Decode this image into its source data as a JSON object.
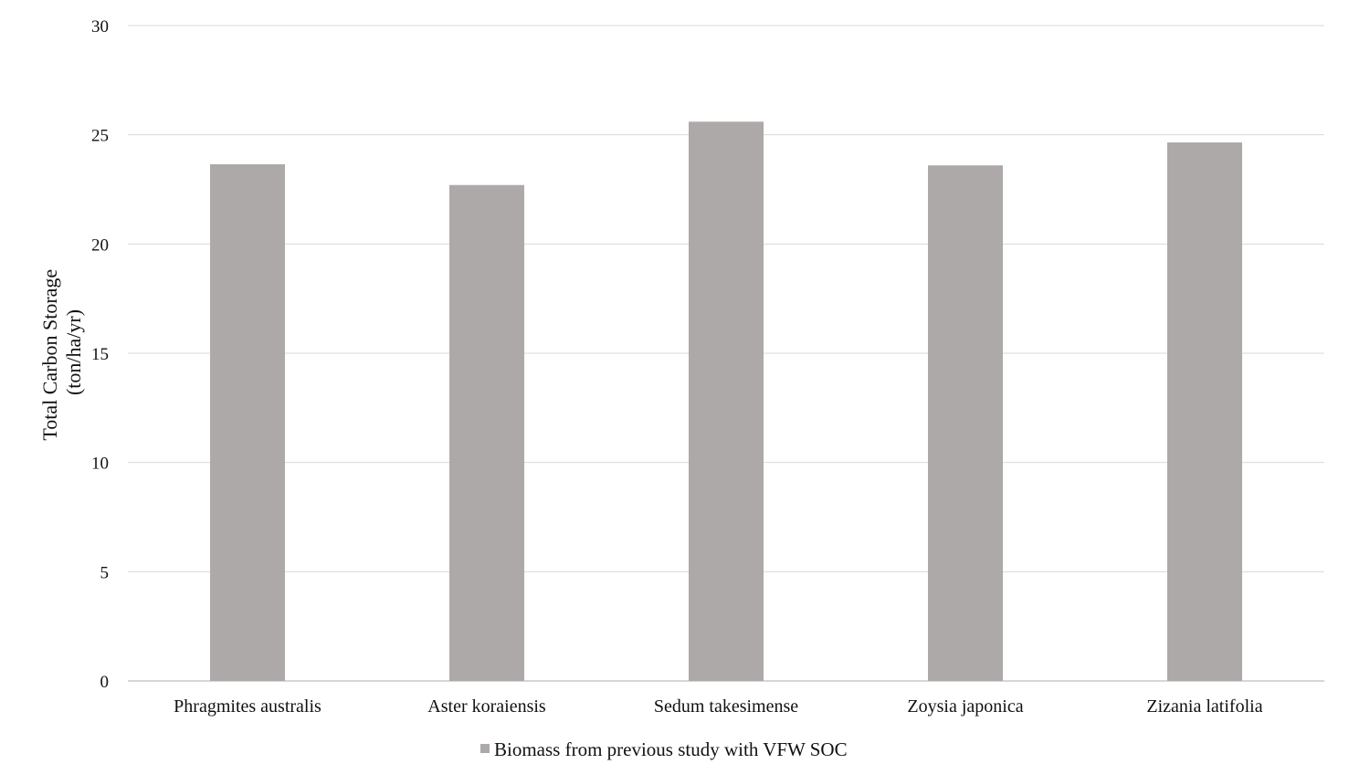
{
  "chart_data": {
    "type": "bar",
    "title": "",
    "xlabel": "",
    "ylabel_lines": [
      "Total  Carbon Storage",
      "(ton/ha/yr)"
    ],
    "ylim": [
      0,
      30
    ],
    "yticks": [
      0,
      5,
      10,
      15,
      20,
      25,
      30
    ],
    "grid": true,
    "legend_position": "bottom",
    "categories": [
      "Phragmites australis",
      "Aster koraiensis",
      "Sedum takesimense",
      "Zoysia japonica",
      "Zizania latifolia"
    ],
    "series": [
      {
        "name": "Biomass from previous study with VFW SOC",
        "color": "#ada9a8",
        "values": [
          23.65,
          22.7,
          25.6,
          23.6,
          24.65
        ]
      }
    ]
  }
}
